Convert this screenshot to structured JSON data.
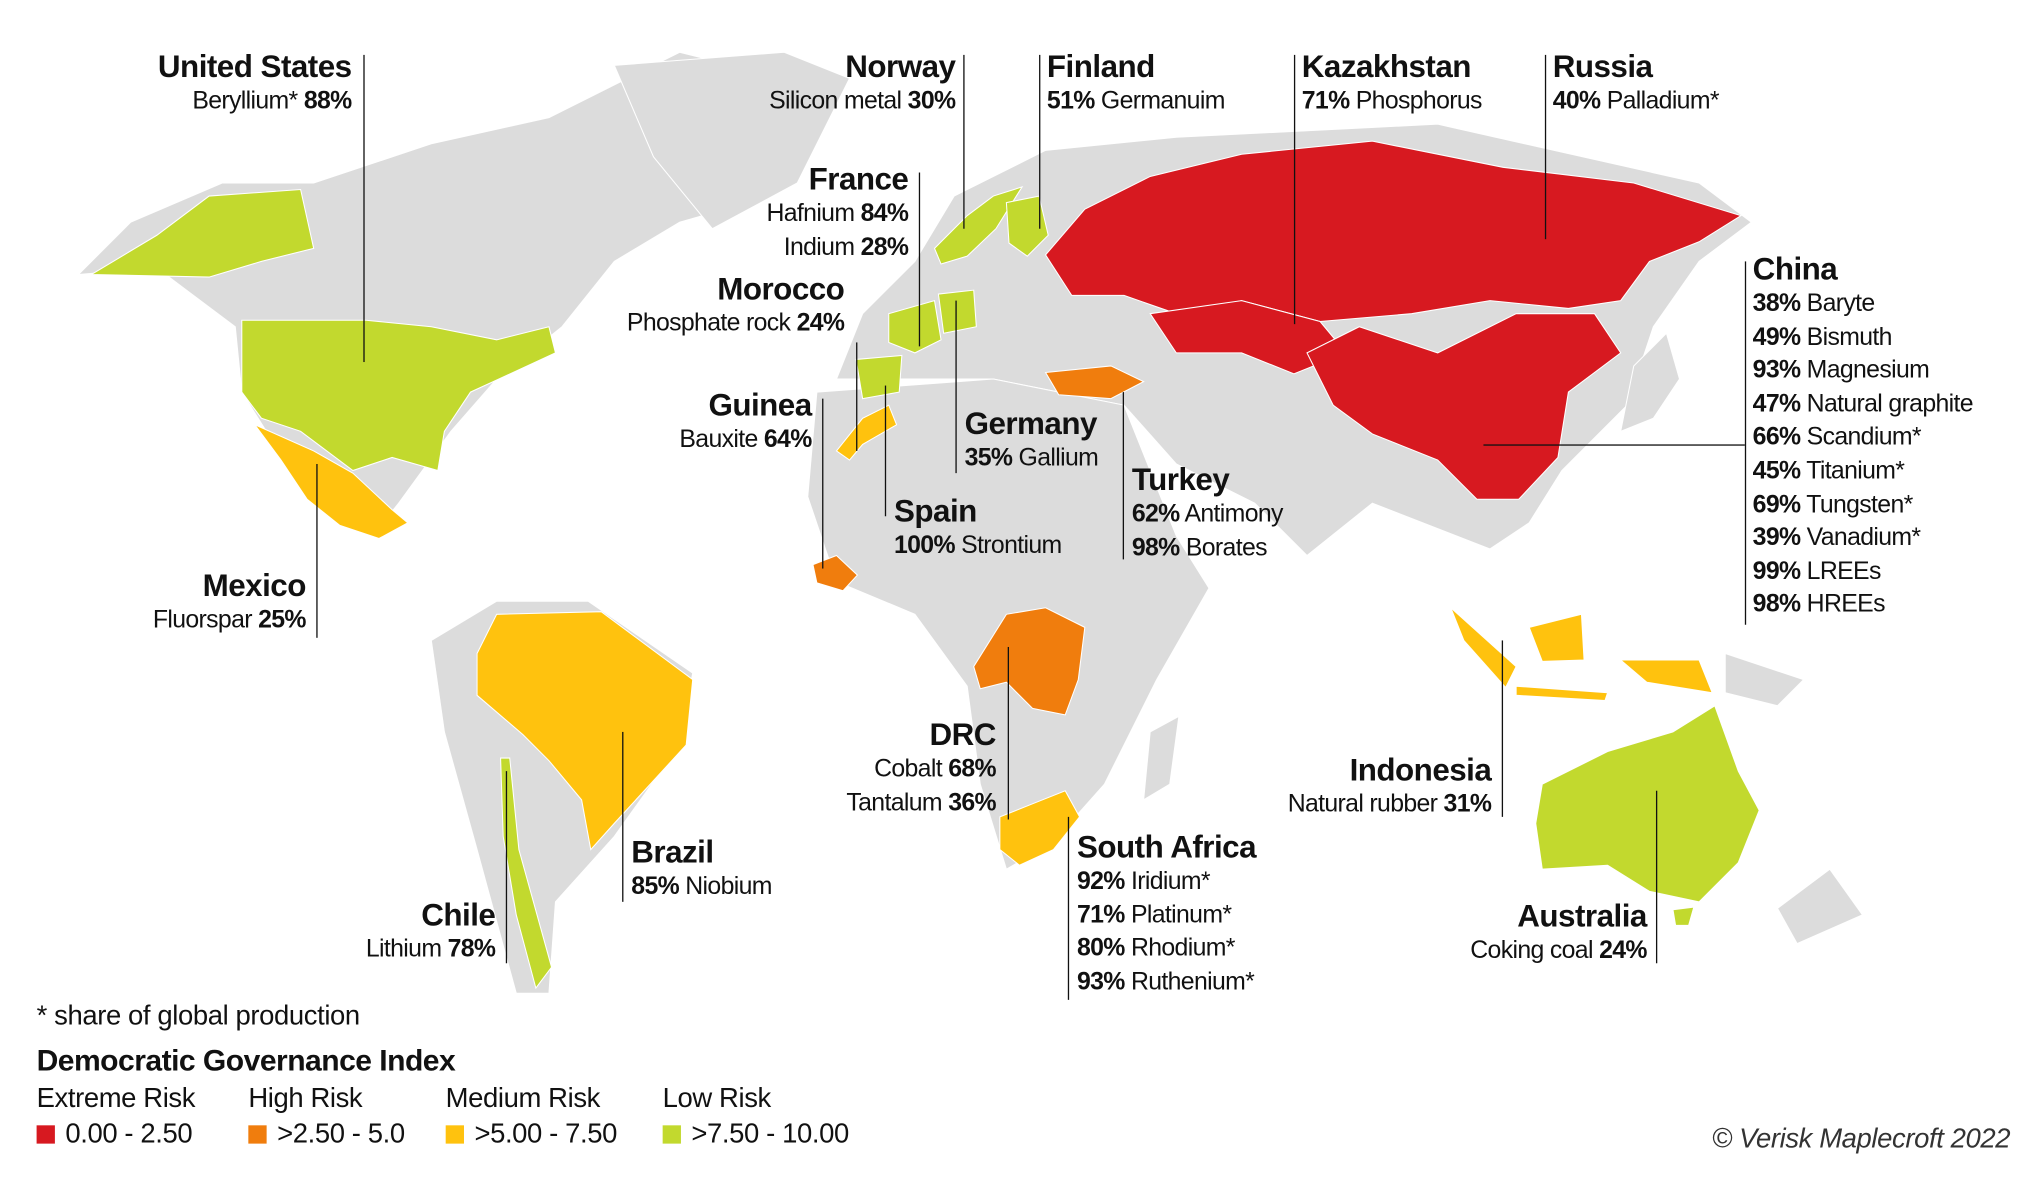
{
  "colors": {
    "extreme": "#d71920",
    "high": "#f07d0d",
    "medium": "#ffc20e",
    "low": "#c2d92e",
    "no_data": "#dcdcdc"
  },
  "countries": [
    {
      "name": "United States",
      "risk": "low"
    },
    {
      "name": "Mexico",
      "risk": "medium"
    },
    {
      "name": "Brazil",
      "risk": "medium"
    },
    {
      "name": "Chile",
      "risk": "low"
    },
    {
      "name": "Norway",
      "risk": "low"
    },
    {
      "name": "Finland",
      "risk": "low"
    },
    {
      "name": "France",
      "risk": "low"
    },
    {
      "name": "Germany",
      "risk": "low"
    },
    {
      "name": "Spain",
      "risk": "low"
    },
    {
      "name": "Morocco",
      "risk": "medium"
    },
    {
      "name": "Guinea",
      "risk": "high"
    },
    {
      "name": "Turkey",
      "risk": "high"
    },
    {
      "name": "Russia",
      "risk": "extreme"
    },
    {
      "name": "Kazakhstan",
      "risk": "extreme"
    },
    {
      "name": "China",
      "risk": "extreme"
    },
    {
      "name": "DRC",
      "risk": "high"
    },
    {
      "name": "South Africa",
      "risk": "medium"
    },
    {
      "name": "Indonesia",
      "risk": "medium"
    },
    {
      "name": "Australia",
      "risk": "low"
    }
  ],
  "labels": {
    "us": {
      "title": "United States",
      "lines": [
        {
          "text": "Beryllium*",
          "value": "88%",
          "value_first": false
        }
      ]
    },
    "norway": {
      "title": "Norway",
      "lines": [
        {
          "text": "Silicon metal",
          "value": "30%",
          "value_first": false
        }
      ]
    },
    "finland": {
      "title": "Finland",
      "lines": [
        {
          "text": "Germanuim",
          "value": "51%",
          "value_first": true
        }
      ]
    },
    "kazakhstan": {
      "title": "Kazakhstan",
      "lines": [
        {
          "text": "Phosphorus",
          "value": "71%",
          "value_first": true
        }
      ]
    },
    "russia": {
      "title": "Russia",
      "lines": [
        {
          "text": "Palladium*",
          "value": "40%",
          "value_first": true
        }
      ]
    },
    "france": {
      "title": "France",
      "lines": [
        {
          "text": "Hafnium",
          "value": "84%",
          "value_first": false
        },
        {
          "text": "Indium",
          "value": "28%",
          "value_first": false
        }
      ]
    },
    "morocco": {
      "title": "Morocco",
      "lines": [
        {
          "text": "Phosphate rock",
          "value": "24%",
          "value_first": false
        }
      ]
    },
    "guinea": {
      "title": "Guinea",
      "lines": [
        {
          "text": "Bauxite",
          "value": "64%",
          "value_first": false
        }
      ]
    },
    "germany": {
      "title": "Germany",
      "lines": [
        {
          "text": "Gallium",
          "value": "35%",
          "value_first": true
        }
      ]
    },
    "spain": {
      "title": "Spain",
      "lines": [
        {
          "text": "Strontium",
          "value": "100%",
          "value_first": true
        }
      ]
    },
    "turkey": {
      "title": "Turkey",
      "lines": [
        {
          "text": "Antimony",
          "value": "62%",
          "value_first": true
        },
        {
          "text": "Borates",
          "value": "98%",
          "value_first": true
        }
      ]
    },
    "mexico": {
      "title": "Mexico",
      "lines": [
        {
          "text": "Fluorspar",
          "value": "25%",
          "value_first": false
        }
      ]
    },
    "china": {
      "title": "China",
      "lines": [
        {
          "text": "Baryte",
          "value": "38%",
          "value_first": true
        },
        {
          "text": "Bismuth",
          "value": "49%",
          "value_first": true
        },
        {
          "text": "Magnesium",
          "value": "93%",
          "value_first": true
        },
        {
          "text": "Natural graphite",
          "value": "47%",
          "value_first": true
        },
        {
          "text": "Scandium*",
          "value": "66%",
          "value_first": true
        },
        {
          "text": "Titanium*",
          "value": "45%",
          "value_first": true
        },
        {
          "text": "Tungsten*",
          "value": "69%",
          "value_first": true
        },
        {
          "text": "Vanadium*",
          "value": "39%",
          "value_first": true
        },
        {
          "text": "LREEs",
          "value": "99%",
          "value_first": true
        },
        {
          "text": "HREEs",
          "value": "98%",
          "value_first": true
        }
      ]
    },
    "brazil": {
      "title": "Brazil",
      "lines": [
        {
          "text": "Niobium",
          "value": "85%",
          "value_first": true
        }
      ]
    },
    "drc": {
      "title": "DRC",
      "lines": [
        {
          "text": "Cobalt",
          "value": "68%",
          "value_first": false
        },
        {
          "text": "Tantalum",
          "value": "36%",
          "value_first": false
        }
      ]
    },
    "south_africa": {
      "title": "South Africa",
      "lines": [
        {
          "text": "Iridium*",
          "value": "92%",
          "value_first": true
        },
        {
          "text": "Platinum*",
          "value": "71%",
          "value_first": true
        },
        {
          "text": "Rhodium*",
          "value": "80%",
          "value_first": true
        },
        {
          "text": "Ruthenium*",
          "value": "93%",
          "value_first": true
        }
      ]
    },
    "indonesia": {
      "title": "Indonesia",
      "lines": [
        {
          "text": "Natural rubber",
          "value": "31%",
          "value_first": false
        }
      ]
    },
    "australia": {
      "title": "Australia",
      "lines": [
        {
          "text": "Coking coal",
          "value": "24%",
          "value_first": false
        }
      ]
    },
    "chile": {
      "title": "Chile",
      "lines": [
        {
          "text": "Lithium",
          "value": "78%",
          "value_first": false
        }
      ]
    }
  },
  "legend": {
    "note": "* share of global production",
    "title": "Democratic Governance Index",
    "categories": [
      {
        "label": "Extreme Risk",
        "range": "0.00 - 2.50",
        "risk": "extreme"
      },
      {
        "label": "High Risk",
        "range": ">2.50 - 5.0",
        "risk": "high"
      },
      {
        "label": "Medium Risk",
        "range": ">5.00 - 7.50",
        "risk": "medium"
      },
      {
        "label": "Low Risk",
        "range": ">7.50 - 10.00",
        "risk": "low"
      }
    ]
  },
  "copyright": "© Verisk Maplecroft 2022"
}
